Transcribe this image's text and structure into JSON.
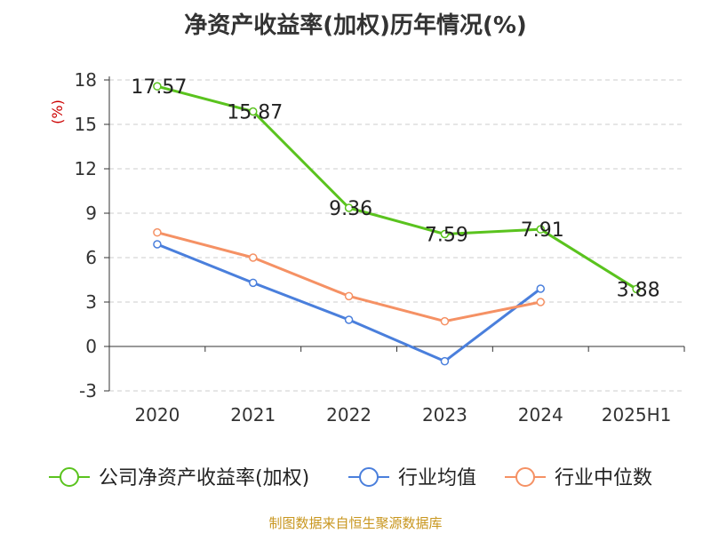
{
  "title": "净资产收益率(加权)历年情况(%)",
  "source": "制图数据来自恒生聚源数据库",
  "chart_data": {
    "type": "line",
    "title": "净资产收益率(加权)历年情况(%)",
    "ylabel": "(%)",
    "xlabel": "",
    "categories": [
      "2020",
      "2021",
      "2022",
      "2023",
      "2024",
      "2025H1"
    ],
    "ylim": [
      -3,
      18
    ],
    "yticks": [
      -3,
      0,
      3,
      6,
      9,
      12,
      15,
      18
    ],
    "grid": true,
    "legend_position": "bottom",
    "series": [
      {
        "name": "公司净资产收益率(加权)",
        "color": "#5ac31e",
        "values": [
          17.57,
          15.87,
          9.36,
          7.59,
          7.91,
          3.88
        ],
        "labels": [
          "17.57",
          "15.87",
          "9.36",
          "7.59",
          "7.91",
          "3.88"
        ]
      },
      {
        "name": "行业均值",
        "color": "#4a7fdc",
        "values": [
          6.9,
          4.3,
          1.8,
          -1.0,
          3.9,
          null
        ]
      },
      {
        "name": "行业中位数",
        "color": "#f59164",
        "values": [
          7.7,
          6.0,
          3.4,
          1.7,
          3.0,
          null
        ]
      }
    ]
  }
}
